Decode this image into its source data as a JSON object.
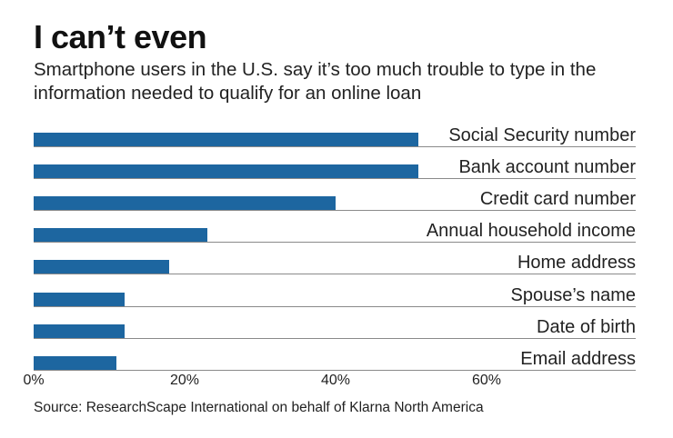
{
  "header": {
    "title": "I can’t even",
    "subtitle": "Smartphone users in the U.S. say it’s too much trouble to type in the information needed to qualify for an online loan"
  },
  "footer": {
    "source": "Source: ResearchScape International on behalf of Klarna North America"
  },
  "colors": {
    "bar": "#1d66a0",
    "baseline": "#8a8a8a"
  },
  "chart_data": {
    "type": "bar",
    "orientation": "horizontal",
    "title": "I can’t even",
    "subtitle": "Smartphone users in the U.S. say it’s too much trouble to type in the information needed to qualify for an online loan",
    "categories": [
      "Social Security number",
      "Bank account number",
      "Credit card number",
      "Annual household income",
      "Home address",
      "Spouse’s name",
      "Date of birth",
      "Email address"
    ],
    "values": [
      51,
      51,
      40,
      23,
      18,
      12,
      12,
      11
    ],
    "xlabel": "",
    "ylabel": "",
    "xlim": [
      0,
      80
    ],
    "x_ticks": [
      "0%",
      "20%",
      "40%",
      "60%"
    ],
    "x_tick_values": [
      0,
      20,
      40,
      60
    ],
    "grid": false,
    "legend": null,
    "unit": "%",
    "source": "Source: ResearchScape International on behalf of Klarna North America"
  }
}
